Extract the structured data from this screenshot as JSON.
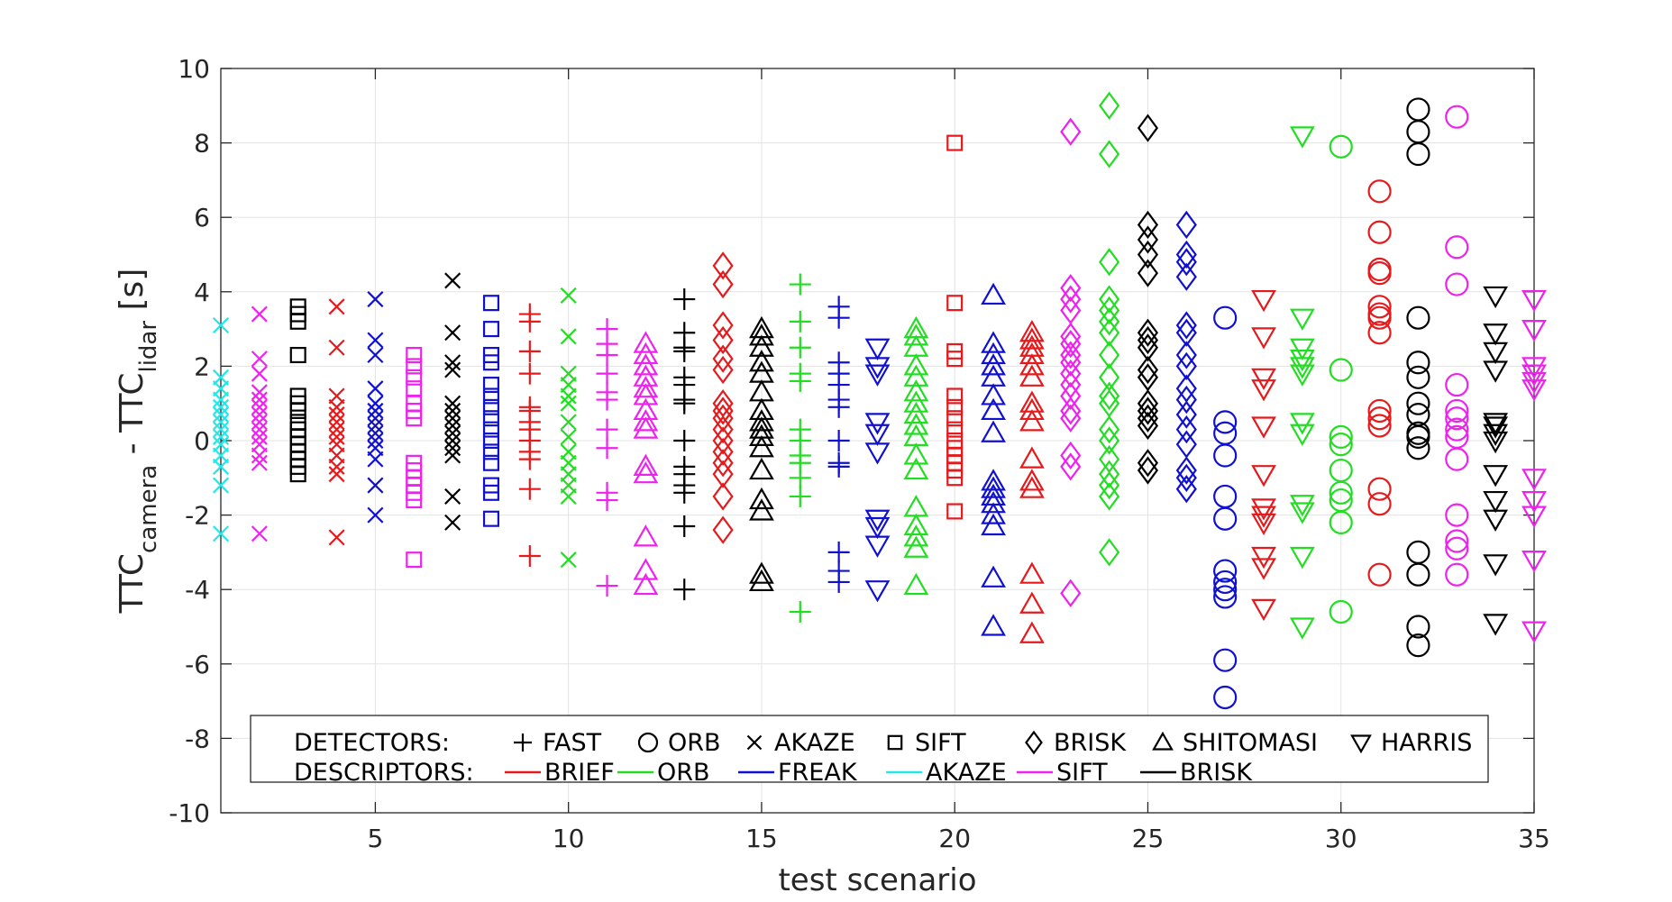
{
  "chart_data": {
    "type": "scatter",
    "xlabel": "test scenario",
    "ylabel_parts": {
      "ttc1": "TTC",
      "sub1": "camera",
      "mid": " - TTC",
      "sub2": "lidar",
      "unit": " [s]"
    },
    "xlim": [
      1,
      35
    ],
    "ylim": [
      -10,
      10
    ],
    "xticks": [
      5,
      10,
      15,
      20,
      25,
      30,
      35
    ],
    "yticks": [
      10,
      8,
      6,
      4,
      2,
      0,
      -2,
      -4,
      -6,
      -8,
      -10
    ],
    "grid": true,
    "legend": {
      "placement": "bottom-center",
      "detectors_label": "DETECTORS:",
      "descriptors_label": "DESCRIPTORS:",
      "detectors": [
        {
          "name": "FAST",
          "marker": "plus"
        },
        {
          "name": "ORB",
          "marker": "circle"
        },
        {
          "name": "AKAZE",
          "marker": "x"
        },
        {
          "name": "SIFT",
          "marker": "square"
        },
        {
          "name": "BRISK",
          "marker": "diamond"
        },
        {
          "name": "SHITOMASI",
          "marker": "triangle-up"
        },
        {
          "name": "HARRIS",
          "marker": "triangle-down"
        }
      ],
      "descriptors": [
        {
          "name": "BRIEF",
          "color": "#e41a1c"
        },
        {
          "name": "ORB",
          "color": "#22dd22"
        },
        {
          "name": "FREAK",
          "color": "#1010d0"
        },
        {
          "name": "AKAZE",
          "color": "#22e8e8"
        },
        {
          "name": "SIFT",
          "color": "#ee22ee"
        },
        {
          "name": "BRISK",
          "color": "#000000"
        }
      ]
    },
    "colors": {
      "BRIEF": "#e41a1c",
      "ORB": "#22dd22",
      "FREAK": "#1010d0",
      "AKAZE": "#22e8e8",
      "SIFT": "#ee22ee",
      "BRISK": "#000000"
    },
    "series": [
      {
        "x": 1,
        "detector": "AKAZE",
        "descriptor": "AKAZE",
        "values": [
          3.1,
          1.7,
          1.4,
          1.1,
          0.9,
          0.7,
          0.5,
          0.3,
          0.1,
          -0.1,
          -0.4,
          -0.7,
          -1.2,
          -2.5
        ]
      },
      {
        "x": 2,
        "detector": "AKAZE",
        "descriptor": "SIFT",
        "values": [
          3.4,
          2.2,
          1.8,
          1.3,
          1.1,
          0.9,
          0.7,
          0.5,
          0.3,
          0.1,
          -0.1,
          -0.4,
          -0.6,
          -2.5
        ]
      },
      {
        "x": 3,
        "detector": "SIFT",
        "descriptor": "BRISK",
        "values": [
          3.6,
          3.4,
          3.2,
          2.3,
          1.2,
          1.0,
          0.8,
          0.5,
          0.3,
          0.1,
          -0.1,
          -0.3,
          -0.5,
          -0.7,
          -0.9
        ]
      },
      {
        "x": 4,
        "detector": "AKAZE",
        "descriptor": "BRIEF",
        "values": [
          3.6,
          2.5,
          1.2,
          0.9,
          0.7,
          0.5,
          0.3,
          0.1,
          -0.1,
          -0.4,
          -0.7,
          -0.9,
          -2.6
        ]
      },
      {
        "x": 5,
        "detector": "AKAZE",
        "descriptor": "FREAK",
        "values": [
          3.8,
          2.7,
          2.3,
          1.4,
          1.0,
          0.8,
          0.6,
          0.4,
          0.2,
          0.0,
          -0.2,
          -0.5,
          -1.2,
          -2.0
        ]
      },
      {
        "x": 6,
        "detector": "SIFT",
        "descriptor": "SIFT",
        "values": [
          2.3,
          2.0,
          1.7,
          1.4,
          1.0,
          0.8,
          0.6,
          -0.6,
          -0.8,
          -1.0,
          -1.2,
          -1.4,
          -1.6,
          -3.2
        ]
      },
      {
        "x": 7,
        "detector": "AKAZE",
        "descriptor": "BRISK",
        "values": [
          4.3,
          2.9,
          2.1,
          1.9,
          1.0,
          0.8,
          0.6,
          0.4,
          0.2,
          0.0,
          -0.2,
          -0.4,
          -1.5,
          -2.2
        ]
      },
      {
        "x": 8,
        "detector": "SIFT",
        "descriptor": "FREAK",
        "values": [
          3.7,
          3.0,
          2.3,
          2.1,
          1.5,
          1.2,
          0.9,
          0.6,
          0.3,
          0.0,
          -0.3,
          -0.6,
          -1.2,
          -1.4,
          -2.1
        ]
      },
      {
        "x": 9,
        "detector": "FAST",
        "descriptor": "BRIEF",
        "values": [
          3.4,
          3.2,
          2.4,
          1.8,
          0.9,
          0.8,
          0.5,
          0.3,
          0.0,
          -0.3,
          -0.5,
          -1.3,
          -3.1
        ]
      },
      {
        "x": 10,
        "detector": "AKAZE",
        "descriptor": "ORB",
        "values": [
          3.9,
          2.8,
          1.8,
          1.5,
          1.2,
          1.0,
          0.5,
          0.1,
          -0.3,
          -0.6,
          -0.9,
          -1.2,
          -1.5,
          -3.2
        ]
      },
      {
        "x": 11,
        "detector": "FAST",
        "descriptor": "SIFT",
        "values": [
          3.0,
          2.6,
          2.3,
          1.8,
          1.3,
          1.1,
          0.3,
          -0.2,
          -1.4,
          -1.6,
          -3.9
        ]
      },
      {
        "x": 12,
        "detector": "SHITOMASI",
        "descriptor": "SIFT",
        "values": [
          2.6,
          2.3,
          2.0,
          1.7,
          1.4,
          1.2,
          0.8,
          0.5,
          0.3,
          -0.7,
          -0.9,
          -2.6,
          -3.5,
          -3.9
        ]
      },
      {
        "x": 13,
        "detector": "FAST",
        "descriptor": "BRISK",
        "values": [
          3.8,
          2.9,
          2.5,
          2.4,
          1.7,
          1.5,
          1.1,
          1.0,
          0.0,
          -0.7,
          -0.9,
          -1.2,
          -1.4,
          -2.3,
          -4.0
        ]
      },
      {
        "x": 14,
        "detector": "BRISK",
        "descriptor": "BRIEF",
        "values": [
          4.7,
          4.2,
          3.1,
          2.7,
          2.2,
          1.9,
          1.0,
          0.8,
          0.6,
          0.3,
          0.0,
          -0.3,
          -0.6,
          -0.9,
          -1.5,
          -2.4
        ]
      },
      {
        "x": 15,
        "detector": "SHITOMASI",
        "descriptor": "BRISK",
        "values": [
          3.0,
          2.8,
          2.5,
          2.1,
          1.8,
          1.3,
          0.8,
          0.5,
          0.3,
          0.1,
          -0.2,
          -0.8,
          -1.6,
          -1.9,
          -3.6,
          -3.8
        ]
      },
      {
        "x": 16,
        "detector": "FAST",
        "descriptor": "ORB",
        "values": [
          4.2,
          3.2,
          2.5,
          1.8,
          1.6,
          0.3,
          0.0,
          -0.4,
          -0.6,
          -1.0,
          -1.5,
          -4.6
        ]
      },
      {
        "x": 17,
        "detector": "FAST",
        "descriptor": "FREAK",
        "values": [
          3.6,
          3.3,
          2.1,
          1.8,
          1.5,
          1.1,
          0.9,
          0.0,
          -0.6,
          -0.7,
          -3.0,
          -3.5,
          -3.8
        ]
      },
      {
        "x": 18,
        "detector": "HARRIS",
        "descriptor": "FREAK",
        "values": [
          2.5,
          2.0,
          1.8,
          0.5,
          0.2,
          -0.3,
          -2.1,
          -2.3,
          -2.8,
          -4.0
        ]
      },
      {
        "x": 19,
        "detector": "SHITOMASI",
        "descriptor": "ORB",
        "values": [
          3.0,
          2.8,
          2.5,
          2.0,
          1.7,
          1.3,
          1.0,
          0.7,
          0.4,
          0.1,
          -0.4,
          -0.8,
          -1.8,
          -2.3,
          -2.6,
          -2.9,
          -3.9
        ]
      },
      {
        "x": 20,
        "detector": "SIFT",
        "descriptor": "BRIEF",
        "values": [
          8.0,
          3.7,
          2.4,
          2.2,
          1.2,
          0.9,
          0.6,
          0.3,
          0.0,
          -0.2,
          -0.4,
          -0.6,
          -0.8,
          -1.0,
          -1.9
        ]
      },
      {
        "x": 21,
        "detector": "SHITOMASI",
        "descriptor": "FREAK",
        "values": [
          3.9,
          2.6,
          2.3,
          2.0,
          1.7,
          1.2,
          0.8,
          0.2,
          -1.1,
          -1.3,
          -1.5,
          -1.7,
          -2.0,
          -2.3,
          -3.7,
          -5.0
        ]
      },
      {
        "x": 22,
        "detector": "SHITOMASI",
        "descriptor": "BRIEF",
        "values": [
          2.9,
          2.7,
          2.5,
          2.3,
          2.0,
          1.7,
          1.0,
          0.8,
          0.5,
          -0.5,
          -1.1,
          -1.3,
          -3.6,
          -4.4,
          -5.2
        ]
      },
      {
        "x": 23,
        "detector": "BRISK",
        "descriptor": "SIFT",
        "values": [
          8.3,
          4.1,
          3.8,
          3.5,
          2.8,
          2.6,
          2.3,
          2.1,
          1.8,
          1.5,
          1.2,
          0.8,
          0.6,
          -0.4,
          -0.7,
          -4.1
        ]
      },
      {
        "x": 24,
        "detector": "BRISK",
        "descriptor": "ORB",
        "values": [
          9.0,
          7.7,
          4.8,
          3.8,
          3.5,
          3.2,
          2.9,
          2.3,
          1.7,
          1.2,
          1.0,
          0.3,
          0.0,
          -0.5,
          -0.9,
          -1.2,
          -1.5,
          -3.0
        ]
      },
      {
        "x": 25,
        "detector": "BRISK",
        "descriptor": "BRISK",
        "values": [
          8.4,
          5.8,
          5.4,
          5.0,
          4.5,
          2.9,
          2.7,
          2.5,
          1.9,
          1.7,
          1.0,
          0.8,
          0.6,
          0.4,
          -0.6,
          -0.8
        ]
      },
      {
        "x": 26,
        "detector": "BRISK",
        "descriptor": "FREAK",
        "values": [
          5.8,
          5.0,
          4.8,
          4.4,
          3.1,
          2.9,
          2.3,
          2.0,
          1.4,
          1.1,
          0.7,
          0.3,
          -0.1,
          -0.8,
          -1.0,
          -1.3
        ]
      },
      {
        "x": 27,
        "detector": "ORB",
        "descriptor": "FREAK",
        "values": [
          3.3,
          0.5,
          0.2,
          -0.4,
          -1.5,
          -2.1,
          -3.5,
          -3.8,
          -4.0,
          -4.2,
          -5.9,
          -6.9
        ]
      },
      {
        "x": 28,
        "detector": "HARRIS",
        "descriptor": "BRIEF",
        "values": [
          3.8,
          2.8,
          1.7,
          1.4,
          0.4,
          -0.9,
          -1.8,
          -2.0,
          -2.2,
          -3.1,
          -3.4,
          -4.5
        ]
      },
      {
        "x": 29,
        "detector": "HARRIS",
        "descriptor": "ORB",
        "values": [
          8.2,
          3.3,
          2.5,
          2.2,
          2.0,
          1.8,
          0.5,
          0.2,
          -1.7,
          -1.9,
          -3.1,
          -5.0
        ]
      },
      {
        "x": 30,
        "detector": "ORB",
        "descriptor": "ORB",
        "values": [
          7.9,
          1.9,
          0.1,
          -0.1,
          -0.8,
          -1.4,
          -1.6,
          -2.2,
          -4.6
        ]
      },
      {
        "x": 31,
        "detector": "ORB",
        "descriptor": "BRIEF",
        "values": [
          6.7,
          5.6,
          4.6,
          4.5,
          3.6,
          3.4,
          3.3,
          2.9,
          0.8,
          0.6,
          0.4,
          -1.3,
          -1.7,
          -3.6
        ]
      },
      {
        "x": 32,
        "detector": "ORB",
        "descriptor": "BRISK",
        "values": [
          8.9,
          8.3,
          7.7,
          3.3,
          2.1,
          1.7,
          1.0,
          0.7,
          0.2,
          0.1,
          -0.2,
          -3.0,
          -3.6,
          -5.0,
          -5.5
        ]
      },
      {
        "x": 33,
        "detector": "ORB",
        "descriptor": "SIFT",
        "values": [
          8.7,
          5.2,
          4.2,
          1.5,
          0.8,
          0.6,
          0.3,
          0.1,
          -0.5,
          -2.0,
          -2.7,
          -2.9,
          -3.6
        ]
      },
      {
        "x": 34,
        "detector": "HARRIS",
        "descriptor": "BRISK",
        "values": [
          3.9,
          2.9,
          2.4,
          1.9,
          0.5,
          0.4,
          0.2,
          0.0,
          -0.9,
          -1.6,
          -2.1,
          -3.3,
          -4.9
        ]
      },
      {
        "x": 35,
        "detector": "HARRIS",
        "descriptor": "SIFT",
        "values": [
          3.8,
          3.0,
          2.0,
          1.8,
          1.6,
          1.4,
          -1.0,
          -1.6,
          -2.0,
          -3.2,
          -5.1
        ]
      }
    ]
  }
}
